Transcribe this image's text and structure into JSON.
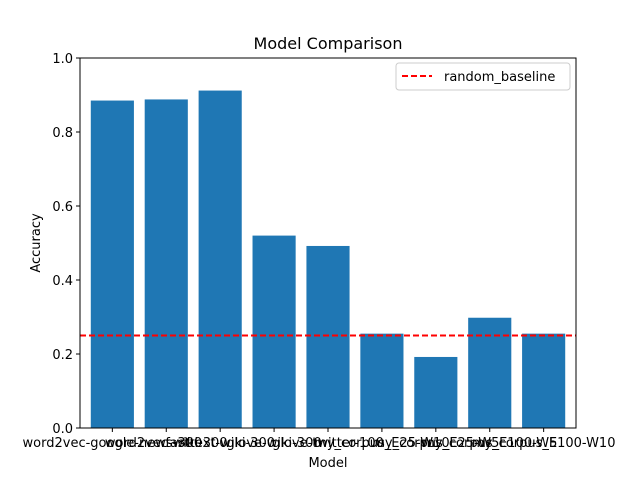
{
  "chart_data": {
    "type": "bar",
    "title": "Model Comparison",
    "xlabel": "Model",
    "ylabel": "Accuracy",
    "ylim": [
      0,
      1.0
    ],
    "yticks": [
      "0.0",
      "0.2",
      "0.4",
      "0.6",
      "0.8",
      "1.0"
    ],
    "categories": [
      "word2vec-google-news-300",
      "word2vec-wiki-300",
      "fasttext-wiki-300",
      "glove-wiki-300",
      "glove-twitter-100",
      "my_corpus_E25-W10",
      "my_corpus_E25-W5",
      "my_corpus_E100-W5",
      "my_corpus_E100-W10"
    ],
    "values": [
      0.885,
      0.888,
      0.912,
      0.52,
      0.492,
      0.255,
      0.192,
      0.298,
      0.255
    ],
    "bar_color": "#1f77b4",
    "baseline": {
      "name": "random_baseline",
      "value": 0.25,
      "color": "#ff0000",
      "style": "dashed"
    },
    "legend": {
      "position": "top-right",
      "entries": [
        "random_baseline"
      ]
    },
    "grid": false
  }
}
